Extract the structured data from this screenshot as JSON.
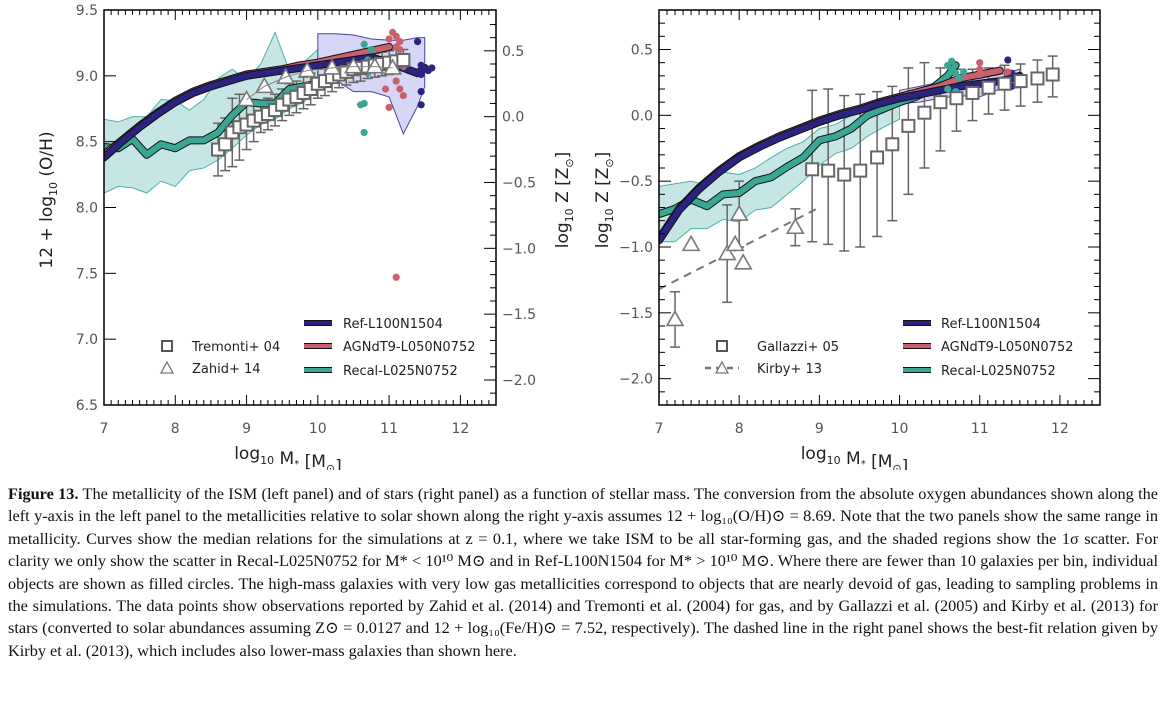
{
  "chart_data": [
    {
      "type": "line",
      "panel": "left",
      "title": "",
      "xlabel": "log10 M* [M☉]",
      "ylabel": "12 + log10 (O/H)",
      "ylabel_right": "log10 Z [Z☉]",
      "xlim": [
        7,
        12.5
      ],
      "ylim": [
        6.5,
        9.5
      ],
      "ylim_right_offset": 8.69,
      "xticks": [
        "7",
        "8",
        "9",
        "10",
        "11",
        "12"
      ],
      "yticks": [
        "6.5",
        "7.0",
        "7.5",
        "8.0",
        "8.5",
        "9.0",
        "9.5"
      ],
      "yticks_right": [
        "−2.0",
        "−1.5",
        "−1.0",
        "−0.5",
        "0.0",
        "0.5"
      ],
      "series": [
        {
          "name": "Ref-L100N1504",
          "color": "#2b2380",
          "x": [
            7.0,
            7.25,
            7.5,
            7.75,
            8.0,
            8.25,
            8.5,
            8.75,
            9.0,
            9.25,
            9.5,
            9.75,
            10.0,
            10.25,
            10.5,
            10.75,
            11.0,
            11.2,
            11.4,
            11.5
          ],
          "y": [
            8.38,
            8.5,
            8.61,
            8.71,
            8.8,
            8.87,
            8.92,
            8.96,
            9.0,
            9.02,
            9.04,
            9.06,
            9.08,
            9.1,
            9.12,
            9.14,
            9.1,
            9.06,
            9.02,
            9.06
          ]
        },
        {
          "name": "AGNdT9-L050N0752",
          "color": "#c9606e",
          "x": [
            7.0,
            7.25,
            7.5,
            7.75,
            8.0,
            8.25,
            8.5,
            8.75,
            9.0,
            9.25,
            9.5,
            9.75,
            10.0,
            10.25,
            10.5,
            10.75,
            11.0
          ],
          "y": [
            8.4,
            8.51,
            8.62,
            8.72,
            8.81,
            8.88,
            8.93,
            8.97,
            9.01,
            9.03,
            9.05,
            9.08,
            9.1,
            9.13,
            9.16,
            9.19,
            9.22
          ]
        },
        {
          "name": "Recal-L025N0752",
          "color": "#3aa694",
          "x": [
            7.0,
            7.2,
            7.4,
            7.6,
            7.8,
            8.0,
            8.2,
            8.4,
            8.6,
            8.8,
            9.0,
            9.2,
            9.4,
            9.6,
            9.8,
            10.0,
            10.2,
            10.4,
            10.6,
            10.7
          ],
          "y": [
            8.46,
            8.45,
            8.52,
            8.4,
            8.48,
            8.45,
            8.51,
            8.51,
            8.57,
            8.7,
            8.8,
            8.79,
            8.79,
            8.9,
            8.92,
            8.94,
            9.0,
            9.05,
            9.12,
            9.15
          ]
        }
      ],
      "scatter_bands": [
        {
          "name": "Recal-L025N0752 1σ",
          "color": "#bfe3e2",
          "x": [
            7.0,
            7.2,
            7.4,
            7.6,
            7.8,
            8.0,
            8.2,
            8.4,
            8.6,
            8.8,
            9.0,
            9.2,
            9.4,
            9.6,
            9.8,
            10.0
          ],
          "upper": [
            8.67,
            8.65,
            8.69,
            8.69,
            8.82,
            8.81,
            8.74,
            8.82,
            8.98,
            9.05,
            8.97,
            9.09,
            9.33,
            9.04,
            9.1,
            9.2
          ],
          "lower": [
            8.11,
            8.16,
            8.15,
            8.11,
            8.2,
            8.16,
            8.28,
            8.3,
            8.36,
            8.45,
            8.55,
            8.63,
            8.67,
            8.75,
            8.8,
            8.9
          ]
        },
        {
          "name": "Ref-L100N1504 1σ",
          "color": "#d4d2f5",
          "x": [
            10.0,
            10.25,
            10.5,
            10.75,
            11.0,
            11.2,
            11.4,
            11.5
          ],
          "upper": [
            9.32,
            9.32,
            9.31,
            9.28,
            9.27,
            9.27,
            9.29,
            9.29
          ],
          "lower": [
            9.0,
            8.97,
            8.88,
            8.88,
            8.84,
            8.56,
            8.77,
            8.92
          ]
        }
      ],
      "observations": [
        {
          "name": "Tremonti+ 04",
          "marker": "square",
          "x": [
            8.6,
            8.7,
            8.8,
            8.9,
            9.0,
            9.1,
            9.2,
            9.3,
            9.4,
            9.5,
            9.6,
            9.7,
            9.8,
            9.9,
            10.0,
            10.1,
            10.2,
            10.3,
            10.4,
            10.5,
            10.6,
            10.7,
            10.8,
            10.9,
            11.0,
            11.1,
            11.2
          ],
          "y": [
            8.44,
            8.48,
            8.57,
            8.61,
            8.63,
            8.66,
            8.69,
            8.71,
            8.74,
            8.78,
            8.82,
            8.84,
            8.87,
            8.9,
            8.94,
            8.96,
            8.99,
            9.01,
            9.03,
            9.05,
            9.06,
            9.07,
            9.08,
            9.09,
            9.1,
            9.11,
            9.12
          ],
          "err": [
            0.2,
            0.2,
            0.26,
            0.25,
            0.19,
            0.16,
            0.12,
            0.12,
            0.12,
            0.12,
            0.12,
            0.12,
            0.12,
            0.12,
            0.11,
            0.11,
            0.11,
            0.1,
            0.1,
            0.1,
            0.1,
            0.09,
            0.09,
            0.09,
            0.09,
            0.09,
            0.08
          ]
        },
        {
          "name": "Zahid+ 14",
          "marker": "triangle",
          "x": [
            9.0,
            9.25,
            9.55,
            9.85,
            10.2,
            10.5,
            10.8,
            11.05
          ],
          "y": [
            8.82,
            8.92,
            8.99,
            9.04,
            9.06,
            9.07,
            9.07,
            9.06
          ]
        }
      ],
      "individual_objects": {
        "Ref-L100N1504": {
          "x": [
            11.45,
            11.45,
            11.5,
            11.55,
            11.6,
            11.45,
            11.45,
            11.4
          ],
          "y": [
            9.08,
            9.01,
            9.05,
            9.04,
            9.06,
            8.88,
            8.78,
            9.26
          ]
        },
        "AGNdT9-L050N0752": {
          "x": [
            11.05,
            11.1,
            11.15,
            11.1,
            11.15,
            11.2,
            10.95,
            11.0,
            11.1,
            11.15,
            11.2,
            11.0,
            11.1
          ],
          "y": [
            9.33,
            9.22,
            9.26,
            9.3,
            9.2,
            9.07,
            8.9,
            9.28,
            8.96,
            8.9,
            8.85,
            8.76,
            7.47
          ]
        },
        "Recal-L025N0752": {
          "x": [
            10.65,
            10.7,
            10.7,
            10.8,
            10.6,
            10.65,
            10.75,
            10.65
          ],
          "y": [
            9.24,
            9.12,
            9.02,
            9.06,
            8.78,
            8.79,
            9.2,
            8.57
          ]
        }
      },
      "legend": {
        "placement": "bottom",
        "left_entries": [
          "Tremonti+ 04",
          "Zahid+ 14"
        ],
        "right_entries": [
          "Ref-L100N1504",
          "AGNdT9-L050N0752",
          "Recal-L025N0752"
        ]
      }
    },
    {
      "type": "line",
      "panel": "right",
      "title": "",
      "xlabel": "log10 M* [M☉]",
      "ylabel": "log10 Z [Z☉]",
      "xlim": [
        7,
        12.5
      ],
      "ylim": [
        -2.2,
        0.8
      ],
      "xticks": [
        "7",
        "8",
        "9",
        "10",
        "11",
        "12"
      ],
      "yticks": [
        "−2.0",
        "−1.5",
        "−1.0",
        "−0.5",
        "0.0",
        "0.5"
      ],
      "series": [
        {
          "name": "Ref-L100N1504",
          "color": "#2b2380",
          "x": [
            7.0,
            7.25,
            7.5,
            7.75,
            8.0,
            8.25,
            8.5,
            8.75,
            9.0,
            9.25,
            9.5,
            9.75,
            10.0,
            10.25,
            10.5,
            10.75,
            11.0,
            11.25,
            11.4,
            11.5
          ],
          "y": [
            -0.95,
            -0.72,
            -0.56,
            -0.43,
            -0.32,
            -0.24,
            -0.17,
            -0.11,
            -0.05,
            0.0,
            0.04,
            0.09,
            0.13,
            0.16,
            0.19,
            0.22,
            0.24,
            0.26,
            0.28,
            0.3
          ]
        },
        {
          "name": "AGNdT9-L050N0752",
          "color": "#c9606e",
          "x": [
            7.0,
            7.25,
            7.5,
            7.75,
            8.0,
            8.25,
            8.5,
            8.75,
            9.0,
            9.25,
            9.5,
            9.75,
            10.0,
            10.25,
            10.5,
            10.75,
            11.0,
            11.25
          ],
          "y": [
            -0.94,
            -0.71,
            -0.55,
            -0.42,
            -0.31,
            -0.23,
            -0.16,
            -0.1,
            -0.04,
            0.01,
            0.05,
            0.1,
            0.14,
            0.18,
            0.22,
            0.28,
            0.31,
            0.34
          ]
        },
        {
          "name": "Recal-L025N0752",
          "color": "#3aa694",
          "x": [
            7.0,
            7.2,
            7.4,
            7.6,
            7.8,
            8.0,
            8.2,
            8.4,
            8.6,
            8.8,
            9.0,
            9.2,
            9.4,
            9.6,
            9.8,
            10.0,
            10.2,
            10.4,
            10.6,
            10.7
          ],
          "y": [
            -0.75,
            -0.71,
            -0.64,
            -0.69,
            -0.6,
            -0.59,
            -0.5,
            -0.47,
            -0.39,
            -0.32,
            -0.19,
            -0.16,
            -0.1,
            0.0,
            0.05,
            0.1,
            0.14,
            0.2,
            0.3,
            0.38
          ]
        }
      ],
      "scatter_bands": [
        {
          "name": "Recal-L025N0752 1σ",
          "color": "#bfe3e2",
          "x": [
            7.0,
            7.2,
            7.4,
            7.6,
            7.8,
            8.0,
            8.2,
            8.4,
            8.6,
            8.8,
            9.0,
            9.2,
            9.4,
            9.6,
            9.8,
            10.0
          ],
          "upper": [
            -0.54,
            -0.52,
            -0.5,
            -0.53,
            -0.43,
            -0.45,
            -0.4,
            -0.32,
            -0.25,
            -0.2,
            -0.1,
            -0.07,
            0.0,
            0.06,
            0.12,
            0.16
          ],
          "lower": [
            -0.96,
            -0.96,
            -0.86,
            -0.86,
            -0.79,
            -0.81,
            -0.72,
            -0.7,
            -0.6,
            -0.5,
            -0.38,
            -0.29,
            -0.25,
            -0.16,
            -0.09,
            -0.03
          ]
        },
        {
          "name": "Ref-L100N1504 1σ",
          "color": "#d4d2f5",
          "x": [
            10.0,
            10.25,
            10.5,
            10.75,
            11.0,
            11.25,
            11.5
          ],
          "upper": [
            0.19,
            0.22,
            0.25,
            0.26,
            0.28,
            0.31,
            0.35
          ],
          "lower": [
            0.09,
            0.1,
            0.13,
            0.15,
            0.14,
            0.2,
            0.21
          ]
        }
      ],
      "observations": [
        {
          "name": "Gallazzi+ 05",
          "marker": "square",
          "x": [
            8.91,
            9.11,
            9.31,
            9.51,
            9.72,
            9.91,
            10.11,
            10.31,
            10.51,
            10.71,
            10.91,
            11.11,
            11.31,
            11.51,
            11.72,
            11.91
          ],
          "y": [
            -0.41,
            -0.42,
            -0.45,
            -0.42,
            -0.32,
            -0.22,
            -0.08,
            0.02,
            0.1,
            0.13,
            0.17,
            0.21,
            0.24,
            0.26,
            0.28,
            0.31
          ],
          "err_up": [
            0.6,
            0.62,
            0.6,
            0.58,
            0.5,
            0.44,
            0.44,
            0.38,
            0.26,
            0.22,
            0.18,
            0.15,
            0.14,
            0.13,
            0.14,
            0.14
          ],
          "err_down": [
            0.55,
            0.56,
            0.58,
            0.58,
            0.6,
            0.58,
            0.52,
            0.42,
            0.37,
            0.25,
            0.21,
            0.2,
            0.2,
            0.19,
            0.18,
            0.17
          ]
        },
        {
          "name": "Kirby+ 13",
          "marker": "triangle",
          "x": [
            7.2,
            7.4,
            7.85,
            7.95,
            8.0,
            8.05,
            8.7
          ],
          "y": [
            -1.55,
            -0.98,
            -1.05,
            -0.98,
            -0.75,
            -1.12,
            -0.85
          ],
          "err": [
            0.21,
            0,
            0.37,
            0,
            0.25,
            0,
            0.14
          ]
        }
      ],
      "kirby_fit": {
        "name": "Kirby+ 13 best-fit",
        "x": [
          7.0,
          9.0
        ],
        "y": [
          -1.32,
          -0.7
        ],
        "style": "dashed"
      },
      "individual_objects": {
        "Ref-L100N1504": {
          "x": [
            11.35,
            11.4,
            11.45,
            11.5,
            11.35,
            11.4
          ],
          "y": [
            0.42,
            0.32,
            0.28,
            0.26,
            0.24,
            0.22
          ]
        },
        "AGNdT9-L050N0752": {
          "x": [
            11.0,
            11.0,
            11.0,
            11.35
          ],
          "y": [
            0.4,
            0.35,
            0.31,
            0.33
          ]
        },
        "Recal-L025N0752": {
          "x": [
            10.6,
            10.65,
            10.65,
            10.7,
            10.75,
            10.8,
            10.6,
            10.7
          ],
          "y": [
            0.38,
            0.41,
            0.34,
            0.32,
            0.28,
            0.33,
            0.2,
            0.18
          ]
        }
      },
      "legend": {
        "placement": "bottom",
        "left_entries": [
          "Gallazzi+ 05",
          "Kirby+ 13"
        ],
        "right_entries": [
          "Ref-L100N1504",
          "AGNdT9-L050N0752",
          "Recal-L025N0752"
        ]
      }
    }
  ],
  "labels": {
    "xlabel_left": "log",
    "xlabel_sub": "10",
    "xlabel_rest": " M",
    "xlabel_star": "*",
    "xlabel_unit": " [M",
    "xlabel_sun": "⊙",
    "xlabel_close": "]",
    "ylabel_left_prefix": "12 + log",
    "ylabel_left_sub": "10",
    "ylabel_left_suffix": " (O/H)",
    "ylabel_z_prefix": "log",
    "ylabel_z_sub": "10",
    "ylabel_z_suffix": " Z [Z",
    "ylabel_z_sun": "⊙",
    "ylabel_z_close": "]"
  },
  "caption": {
    "label": "Figure 13.",
    "text": " The metallicity of the ISM (left panel) and of stars (right panel) as a function of stellar mass. The conversion from the absolute oxygen abundances shown along the left y-axis in the left panel to the metallicities relative to solar shown along the right y-axis assumes 12 + log₁₀(O/H)⊙ = 8.69. Note that the two panels show the same range in metallicity. Curves show the median relations for the simulations at z = 0.1, where we take ISM to be all star-forming gas, and the shaded regions show the 1σ scatter. For clarity we only show the scatter in Recal-L025N0752 for M* < 10¹⁰ M⊙ and in Ref-L100N1504 for M* > 10¹⁰ M⊙. Where there are fewer than 10 galaxies per bin, individual objects are shown as filled circles. The high-mass galaxies with very low gas metallicities correspond to objects that are nearly devoid of gas, leading to sampling problems in the simulations. The data points show observations reported by Zahid et al. (2014) and Tremonti et al. (2004) for gas, and by Gallazzi et al. (2005) and Kirby et al. (2013) for stars (converted to solar abundances assuming Z⊙ = 0.0127 and 12 + log₁₀(Fe/H)⊙ = 7.52, respectively). The dashed line in the right panel shows the best-fit relation given by Kirby et al. (2013), which includes also lower-mass galaxies than shown here."
  }
}
